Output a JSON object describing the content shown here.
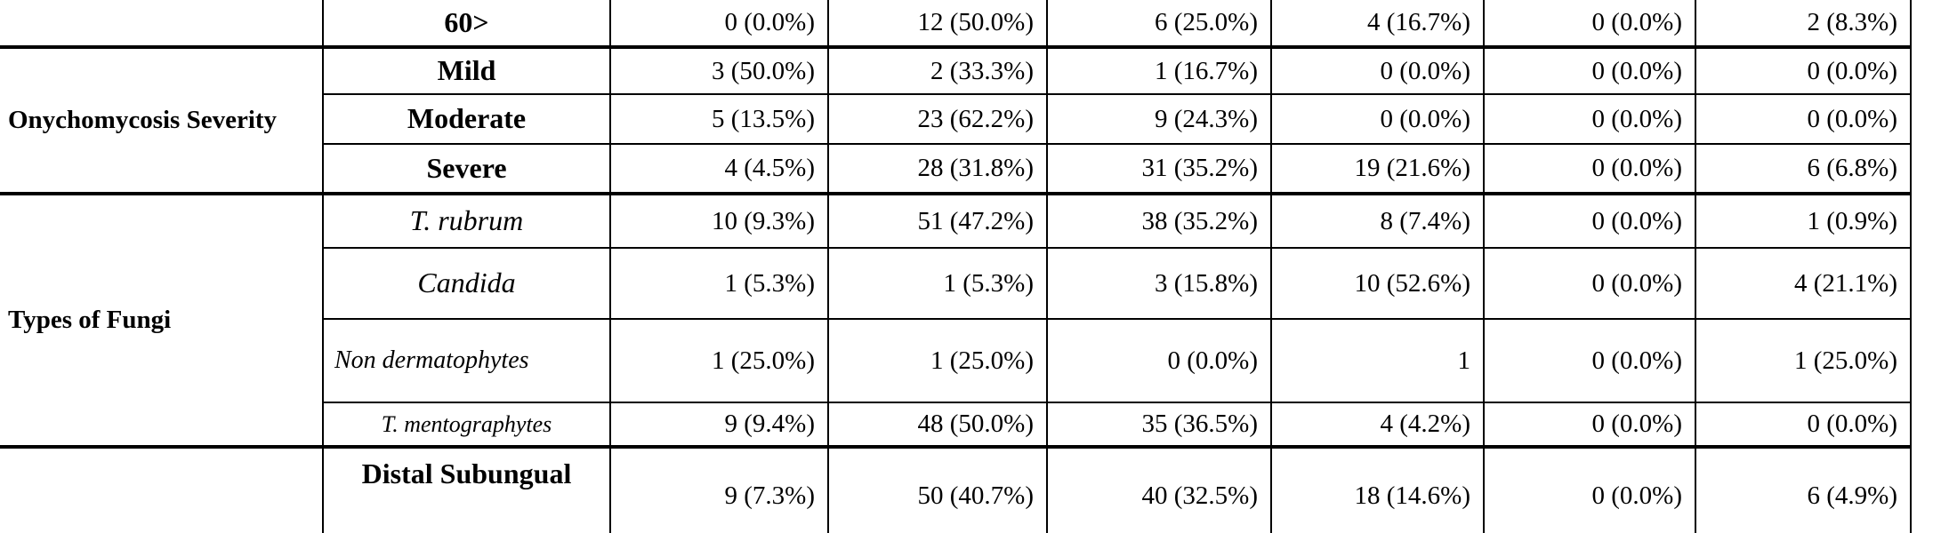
{
  "table": {
    "groups": [
      {
        "rows": [
          {
            "label": "60>",
            "values": [
              "0 (0.0%)",
              "12 (50.0%)",
              "6 (25.0%)",
              "4 (16.7%)",
              "0 (0.0%)",
              "2 (8.3%)"
            ]
          }
        ]
      },
      {
        "label": "Onychomycosis Severity",
        "rows": [
          {
            "label": "Mild",
            "values": [
              "3 (50.0%)",
              "2 (33.3%)",
              "1 (16.7%)",
              "0 (0.0%)",
              "0 (0.0%)",
              "0 (0.0%)"
            ]
          },
          {
            "label": "Moderate",
            "values": [
              "5 (13.5%)",
              "23 (62.2%)",
              "9 (24.3%)",
              "0 (0.0%)",
              "0 (0.0%)",
              "0 (0.0%)"
            ]
          },
          {
            "label": "Severe",
            "values": [
              "4 (4.5%)",
              "28 (31.8%)",
              "31 (35.2%)",
              "19 (21.6%)",
              "0 (0.0%)",
              "6 (6.8%)"
            ]
          }
        ]
      },
      {
        "label": "Types of Fungi",
        "rows": [
          {
            "label": "T. rubrum",
            "values": [
              "10 (9.3%)",
              "51 (47.2%)",
              "38 (35.2%)",
              "8 (7.4%)",
              "0 (0.0%)",
              "1 (0.9%)"
            ]
          },
          {
            "label": "Candida",
            "values": [
              "1 (5.3%)",
              "1 (5.3%)",
              "3 (15.8%)",
              "10 (52.6%)",
              "0 (0.0%)",
              "4 (21.1%)"
            ]
          },
          {
            "label": "Non dermatophytes",
            "values": [
              "1 (25.0%)",
              "1 (25.0%)",
              "0 (0.0%)",
              "1",
              "0 (0.0%)",
              "1 (25.0%)"
            ]
          },
          {
            "label": "T. mentographytes",
            "values": [
              "9 (9.4%)",
              "48 (50.0%)",
              "35 (36.5%)",
              "4 (4.2%)",
              "0 (0.0%)",
              "0 (0.0%)"
            ]
          }
        ]
      },
      {
        "rows": [
          {
            "label": "Distal Subungual",
            "values": [
              "9 (7.3%)",
              "50 (40.7%)",
              "40 (32.5%)",
              "18 (14.6%)",
              "0 (0.0%)",
              "6 (4.9%)"
            ]
          }
        ]
      }
    ]
  }
}
